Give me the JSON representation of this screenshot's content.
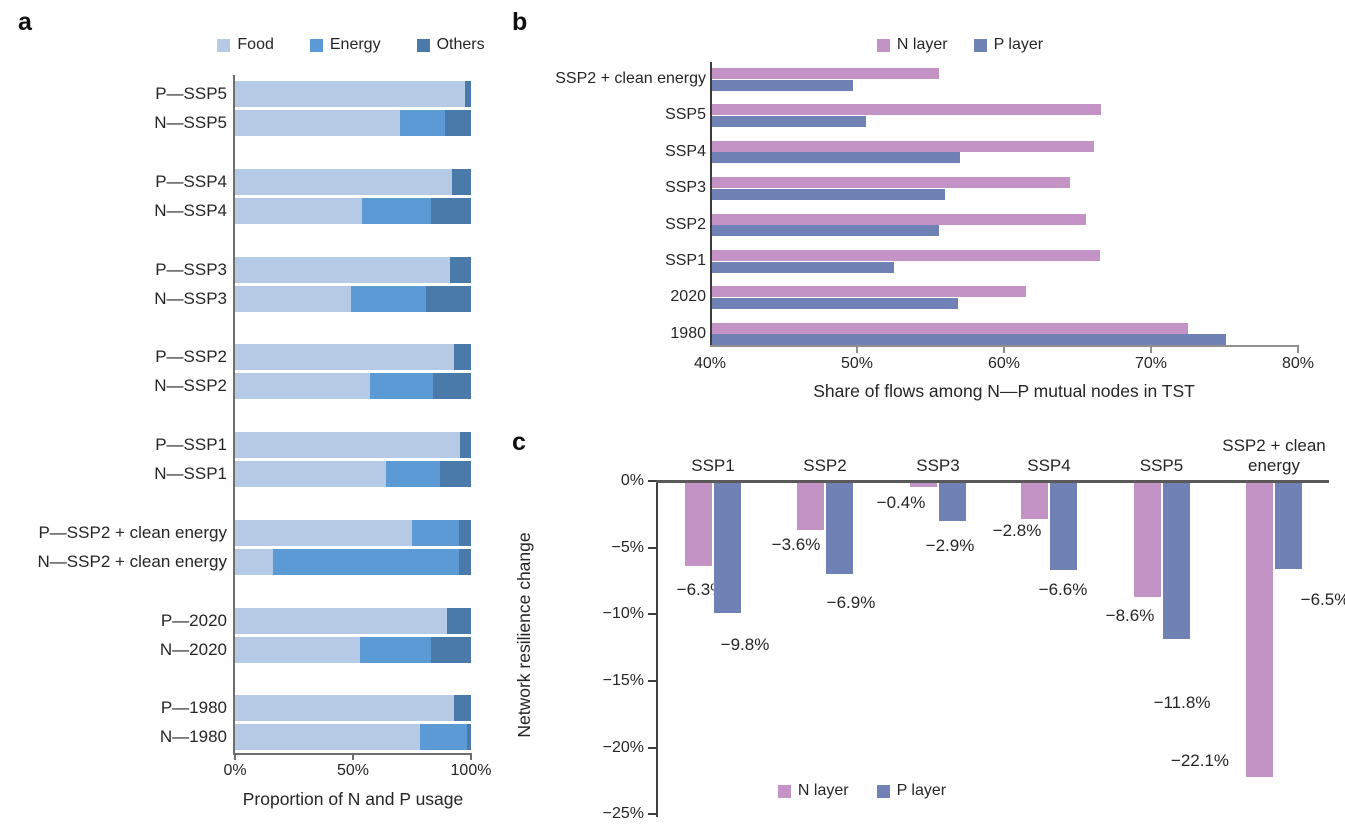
{
  "panels": {
    "a": {
      "letter": "a"
    },
    "b": {
      "letter": "b"
    },
    "c": {
      "letter": "c"
    }
  },
  "colors": {
    "food": "#b6cae6",
    "energy": "#5b9ad5",
    "others": "#4a7aa9",
    "n_layer": "#c493c6",
    "p_layer": "#7081b5"
  },
  "chart_data": [
    {
      "panel": "a",
      "type": "bar",
      "orientation": "horizontal-stacked",
      "categories": [
        "P—SSP5",
        "N—SSP5",
        "P—SSP4",
        "N—SSP4",
        "P—SSP3",
        "N—SSP3",
        "P—SSP2",
        "N—SSP2",
        "P—SSP1",
        "N—SSP1",
        "P—SSP2 + clean energy",
        "N—SSP2 + clean energy",
        "P—2020",
        "N—2020",
        "P—1980",
        "N—1980"
      ],
      "series": [
        {
          "name": "Food",
          "color": "#b6cae6",
          "values": [
            97.5,
            70,
            92,
            54,
            91,
            49,
            93,
            57,
            95.5,
            64,
            75,
            16,
            90,
            53,
            93,
            78.5
          ]
        },
        {
          "name": "Energy",
          "color": "#5b9ad5",
          "values": [
            0,
            19,
            0,
            29,
            0,
            32,
            0,
            27,
            0,
            23,
            20,
            79,
            0,
            30,
            0,
            20
          ]
        },
        {
          "name": "Others",
          "color": "#4a7aa9",
          "values": [
            2.5,
            11,
            8,
            17,
            9,
            19,
            7,
            16,
            4.5,
            13,
            5,
            5,
            10,
            17,
            7,
            1.5
          ]
        }
      ],
      "xlabel": "Proportion of N and P usage",
      "xlim": [
        0,
        100
      ],
      "xticks": [
        {
          "label": "0%",
          "value": 0
        },
        {
          "label": "50%",
          "value": 50
        },
        {
          "label": "100%",
          "value": 100
        }
      ],
      "legend_position": "top",
      "grid": false
    },
    {
      "panel": "b",
      "type": "bar",
      "orientation": "horizontal-grouped",
      "categories": [
        "SSP2 + clean energy",
        "SSP5",
        "SSP4",
        "SSP3",
        "SSP2",
        "SSP1",
        "2020",
        "1980"
      ],
      "series": [
        {
          "name": "N layer",
          "color": "#c493c6",
          "values": [
            55.6,
            66.6,
            66.1,
            64.5,
            65.6,
            66.5,
            61.5,
            72.5
          ]
        },
        {
          "name": "P layer",
          "color": "#7081b5",
          "values": [
            49.7,
            50.6,
            57.0,
            56.0,
            55.6,
            52.5,
            56.9,
            75.1
          ]
        }
      ],
      "xlabel": "Share of flows among N—P mutual nodes in TST",
      "xlim": [
        40,
        80
      ],
      "xticks": [
        {
          "label": "40%",
          "value": 40
        },
        {
          "label": "50%",
          "value": 50
        },
        {
          "label": "60%",
          "value": 60
        },
        {
          "label": "70%",
          "value": 70
        },
        {
          "label": "80%",
          "value": 80
        }
      ],
      "legend_position": "top",
      "grid": false
    },
    {
      "panel": "c",
      "type": "bar",
      "orientation": "vertical-grouped",
      "categories": [
        "SSP1",
        "SSP2",
        "SSP3",
        "SSP4",
        "SSP5",
        "SSP2 + clean energy"
      ],
      "series": [
        {
          "name": "N layer",
          "color": "#c493c6",
          "values": [
            -6.3,
            -3.6,
            -0.4,
            -2.8,
            -8.6,
            -22.1
          ],
          "labels": [
            "−6.3%",
            "−3.6%",
            "−0.4%",
            "−2.8%",
            "−8.6%",
            "−22.1%"
          ]
        },
        {
          "name": "P layer",
          "color": "#7081b5",
          "values": [
            -9.8,
            -6.9,
            -2.9,
            -6.6,
            -11.8,
            -6.5
          ],
          "labels": [
            "−9.8%",
            "−6.9%",
            "−2.9%",
            "−6.6%",
            "−11.8%",
            "−6.5%"
          ]
        }
      ],
      "ylabel": "Network resilience change",
      "ylim": [
        -25,
        0
      ],
      "yticks": [
        {
          "label": "0%",
          "value": 0
        },
        {
          "label": "−5%",
          "value": -5
        },
        {
          "label": "−10%",
          "value": -10
        },
        {
          "label": "−15%",
          "value": -15
        },
        {
          "label": "−20%",
          "value": -20
        },
        {
          "label": "−25%",
          "value": -25
        }
      ],
      "legend_position": "bottom",
      "grid": false
    }
  ]
}
